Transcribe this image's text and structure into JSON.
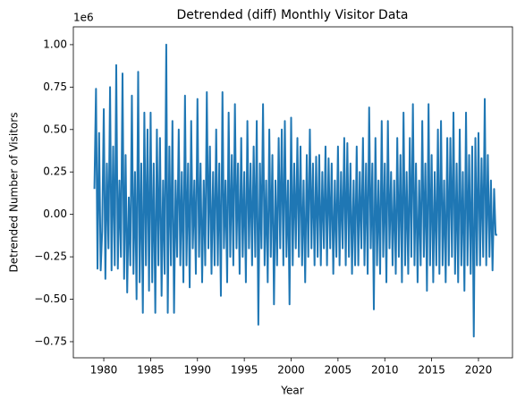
{
  "chart_data": {
    "type": "line",
    "title": "Detrended (diff) Monthly Visitor Data",
    "xlabel": "Year",
    "ylabel": "Detrended Number of Visitors",
    "y_offset_label": "1e6",
    "color": "#1f77b4",
    "x": [
      1979,
      1979.17,
      1979.33,
      1979.5,
      1979.67,
      1979.83,
      1980,
      1980.17,
      1980.33,
      1980.5,
      1980.67,
      1980.83,
      1981,
      1981.17,
      1981.33,
      1981.5,
      1981.67,
      1981.83,
      1982,
      1982.17,
      1982.33,
      1982.5,
      1982.67,
      1982.83,
      1983,
      1983.17,
      1983.33,
      1983.5,
      1983.67,
      1983.83,
      1984,
      1984.17,
      1984.33,
      1984.5,
      1984.67,
      1984.83,
      1985,
      1985.17,
      1985.33,
      1985.5,
      1985.67,
      1985.83,
      1986,
      1986.17,
      1986.33,
      1986.5,
      1986.67,
      1986.83,
      1987,
      1987.17,
      1987.33,
      1987.5,
      1987.67,
      1987.83,
      1988,
      1988.17,
      1988.33,
      1988.5,
      1988.67,
      1988.83,
      1989,
      1989.17,
      1989.33,
      1989.5,
      1989.67,
      1989.83,
      1990,
      1990.17,
      1990.33,
      1990.5,
      1990.67,
      1990.83,
      1991,
      1991.17,
      1991.33,
      1991.5,
      1991.67,
      1991.83,
      1992,
      1992.17,
      1992.33,
      1992.5,
      1992.67,
      1992.83,
      1993,
      1993.17,
      1993.33,
      1993.5,
      1993.67,
      1993.83,
      1994,
      1994.17,
      1994.33,
      1994.5,
      1994.67,
      1994.83,
      1995,
      1995.17,
      1995.33,
      1995.5,
      1995.67,
      1995.83,
      1996,
      1996.17,
      1996.33,
      1996.5,
      1996.67,
      1996.83,
      1997,
      1997.17,
      1997.33,
      1997.5,
      1997.67,
      1997.83,
      1998,
      1998.17,
      1998.33,
      1998.5,
      1998.67,
      1998.83,
      1999,
      1999.17,
      1999.33,
      1999.5,
      1999.67,
      1999.83,
      2000,
      2000.17,
      2000.33,
      2000.5,
      2000.67,
      2000.83,
      2001,
      2001.17,
      2001.33,
      2001.5,
      2001.67,
      2001.83,
      2002,
      2002.17,
      2002.33,
      2002.5,
      2002.67,
      2002.83,
      2003,
      2003.17,
      2003.33,
      2003.5,
      2003.67,
      2003.83,
      2004,
      2004.17,
      2004.33,
      2004.5,
      2004.67,
      2004.83,
      2005,
      2005.17,
      2005.33,
      2005.5,
      2005.67,
      2005.83,
      2006,
      2006.17,
      2006.33,
      2006.5,
      2006.67,
      2006.83,
      2007,
      2007.17,
      2007.33,
      2007.5,
      2007.67,
      2007.83,
      2008,
      2008.17,
      2008.33,
      2008.5,
      2008.67,
      2008.83,
      2009,
      2009.17,
      2009.33,
      2009.5,
      2009.67,
      2009.83,
      2010,
      2010.17,
      2010.33,
      2010.5,
      2010.67,
      2010.83,
      2011,
      2011.17,
      2011.33,
      2011.5,
      2011.67,
      2011.83,
      2012,
      2012.17,
      2012.33,
      2012.5,
      2012.67,
      2012.83,
      2013,
      2013.17,
      2013.33,
      2013.5,
      2013.67,
      2013.83,
      2014,
      2014.17,
      2014.33,
      2014.5,
      2014.67,
      2014.83,
      2015,
      2015.17,
      2015.33,
      2015.5,
      2015.67,
      2015.83,
      2016,
      2016.17,
      2016.33,
      2016.5,
      2016.67,
      2016.83,
      2017,
      2017.17,
      2017.33,
      2017.5,
      2017.67,
      2017.83,
      2018,
      2018.17,
      2018.33,
      2018.5,
      2018.67,
      2018.83,
      2019,
      2019.17,
      2019.33,
      2019.5,
      2019.67,
      2019.83,
      2020,
      2020.17,
      2020.33,
      2020.5,
      2020.67,
      2020.83,
      2021,
      2021.17,
      2021.33,
      2021.5,
      2021.67,
      2021.83,
      2022
    ],
    "values": [
      0.15,
      0.74,
      -0.32,
      0.48,
      -0.33,
      -0.1,
      0.62,
      -0.38,
      0.3,
      -0.2,
      0.75,
      -0.33,
      0.4,
      -0.3,
      0.88,
      -0.32,
      0.2,
      -0.25,
      0.83,
      -0.38,
      0.35,
      -0.46,
      0.1,
      -0.3,
      0.7,
      -0.35,
      0.25,
      -0.5,
      0.84,
      -0.4,
      0.3,
      -0.58,
      0.6,
      -0.3,
      0.5,
      -0.45,
      0.6,
      -0.4,
      0.3,
      -0.58,
      0.5,
      -0.3,
      0.45,
      -0.48,
      0.2,
      -0.35,
      1.0,
      -0.58,
      0.4,
      -0.3,
      0.55,
      -0.58,
      0.2,
      -0.25,
      0.5,
      -0.3,
      0.25,
      -0.4,
      0.7,
      -0.3,
      0.3,
      -0.43,
      0.55,
      -0.2,
      0.2,
      -0.35,
      0.68,
      -0.25,
      0.3,
      -0.4,
      0.2,
      -0.3,
      0.72,
      -0.2,
      0.4,
      -0.35,
      0.25,
      -0.3,
      0.5,
      -0.3,
      0.3,
      -0.48,
      0.72,
      -0.2,
      0.2,
      -0.4,
      0.6,
      -0.25,
      0.35,
      -0.3,
      0.65,
      -0.2,
      0.3,
      -0.35,
      0.45,
      -0.25,
      0.25,
      -0.4,
      0.55,
      -0.2,
      0.3,
      -0.3,
      0.4,
      -0.25,
      0.55,
      -0.65,
      0.3,
      -0.2,
      0.65,
      -0.3,
      0.2,
      -0.4,
      0.5,
      -0.25,
      0.35,
      -0.53,
      0.2,
      -0.3,
      0.45,
      -0.2,
      0.5,
      -0.3,
      0.55,
      -0.25,
      0.2,
      -0.53,
      0.57,
      -0.3,
      0.3,
      -0.2,
      0.45,
      -0.25,
      0.4,
      -0.3,
      0.2,
      -0.4,
      0.35,
      -0.25,
      0.5,
      -0.2,
      0.3,
      -0.3,
      0.34,
      -0.25,
      0.35,
      -0.3,
      0.25,
      -0.2,
      0.4,
      -0.3,
      0.33,
      -0.2,
      0.3,
      -0.35,
      0.2,
      -0.25,
      0.4,
      -0.3,
      0.25,
      -0.2,
      0.45,
      -0.3,
      0.42,
      -0.25,
      0.3,
      -0.35,
      0.2,
      -0.3,
      0.4,
      -0.3,
      0.25,
      -0.2,
      0.45,
      -0.3,
      0.3,
      -0.35,
      0.63,
      -0.2,
      0.3,
      -0.56,
      0.45,
      -0.3,
      0.2,
      -0.35,
      0.55,
      -0.25,
      0.3,
      -0.4,
      0.55,
      -0.2,
      0.25,
      -0.3,
      0.2,
      -0.35,
      0.45,
      -0.25,
      0.35,
      -0.4,
      0.6,
      -0.3,
      0.25,
      -0.35,
      0.45,
      -0.25,
      0.65,
      -0.3,
      0.3,
      -0.4,
      0.2,
      -0.3,
      0.55,
      -0.25,
      0.3,
      -0.45,
      0.65,
      -0.3,
      0.35,
      -0.4,
      0.25,
      -0.3,
      0.5,
      -0.35,
      0.55,
      -0.3,
      0.2,
      -0.4,
      0.45,
      -0.3,
      0.45,
      -0.25,
      0.6,
      -0.35,
      0.3,
      -0.4,
      0.5,
      -0.3,
      0.25,
      -0.45,
      0.6,
      -0.3,
      0.35,
      -0.35,
      0.4,
      -0.72,
      0.45,
      -0.3,
      0.48,
      -0.3,
      0.33,
      -0.25,
      0.68,
      -0.3,
      0.35,
      -0.25,
      0.2,
      -0.33,
      0.15,
      -0.12,
      -0.12
    ],
    "xlim": [
      1976.75,
      2023.63
    ],
    "ylim": [
      -0.845,
      1.105
    ],
    "xticks": [
      1980,
      1985,
      1990,
      1995,
      2000,
      2005,
      2010,
      2015,
      2020
    ],
    "yticks": [
      {
        "value": -0.75,
        "label": "−0.75"
      },
      {
        "value": -0.5,
        "label": "−0.50"
      },
      {
        "value": -0.25,
        "label": "−0.25"
      },
      {
        "value": 0,
        "label": "0.00"
      },
      0.25,
      {
        "value": 0.5,
        "label": "0.50"
      },
      0.75,
      {
        "value": 1,
        "label": "1.00"
      }
    ]
  }
}
